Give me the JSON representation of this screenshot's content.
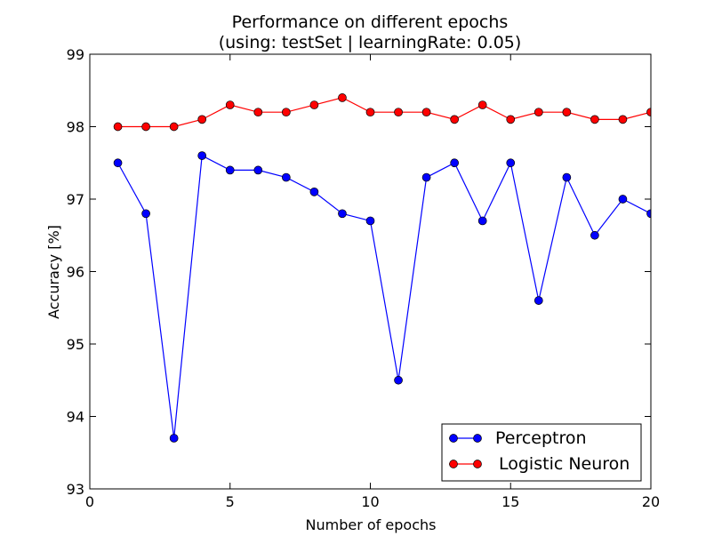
{
  "chart_data": {
    "type": "line",
    "title": "Performance on different epochs",
    "subtitle": "(using: testSet | learningRate: 0.05)",
    "xlabel": "Number of epochs",
    "ylabel": "Accuracy [%]",
    "xlim": [
      0,
      20
    ],
    "ylim": [
      93,
      99
    ],
    "xticks": [
      "0",
      "5",
      "10",
      "15",
      "20"
    ],
    "yticks": [
      "93",
      "94",
      "95",
      "96",
      "97",
      "98",
      "99"
    ],
    "grid": false,
    "legend_position": "lower-right",
    "x": [
      1,
      2,
      3,
      4,
      5,
      6,
      7,
      8,
      9,
      10,
      11,
      12,
      13,
      14,
      15,
      16,
      17,
      18,
      19,
      20
    ],
    "series": [
      {
        "name": "Perceptron",
        "color": "#0000ff",
        "values": [
          97.5,
          96.8,
          93.7,
          97.6,
          97.4,
          97.4,
          97.3,
          97.1,
          96.8,
          96.7,
          94.5,
          97.3,
          97.5,
          96.7,
          97.5,
          95.6,
          97.3,
          96.5,
          97.0,
          96.8
        ]
      },
      {
        "name": "Logistic Neuron",
        "color": "#ff0000",
        "values": [
          98.0,
          98.0,
          98.0,
          98.1,
          98.3,
          98.2,
          98.2,
          98.3,
          98.4,
          98.2,
          98.2,
          98.2,
          98.1,
          98.3,
          98.1,
          98.2,
          98.2,
          98.1,
          98.1,
          98.2
        ]
      }
    ]
  }
}
